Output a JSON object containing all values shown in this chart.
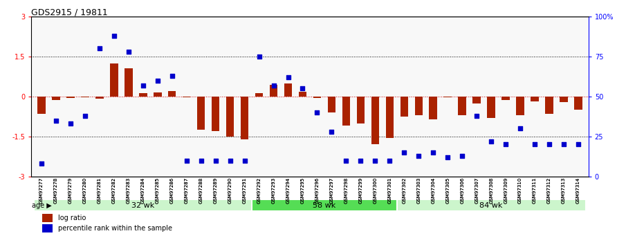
{
  "title": "GDS2915 / 19811",
  "samples": [
    "GSM97277",
    "GSM97278",
    "GSM97279",
    "GSM97280",
    "GSM97281",
    "GSM97282",
    "GSM97283",
    "GSM97284",
    "GSM97285",
    "GSM97286",
    "GSM97287",
    "GSM97288",
    "GSM97289",
    "GSM97290",
    "GSM97291",
    "GSM97292",
    "GSM97293",
    "GSM97294",
    "GSM97295",
    "GSM97296",
    "GSM97297",
    "GSM97298",
    "GSM97299",
    "GSM97300",
    "GSM97301",
    "GSM97302",
    "GSM97303",
    "GSM97304",
    "GSM97305",
    "GSM97306",
    "GSM97307",
    "GSM97308",
    "GSM97309",
    "GSM97310",
    "GSM97311",
    "GSM97312",
    "GSM97313",
    "GSM97314"
  ],
  "log_ratio": [
    -0.65,
    -0.12,
    -0.05,
    -0.04,
    -0.08,
    1.25,
    1.05,
    0.12,
    0.15,
    0.2,
    -0.02,
    -1.25,
    -1.3,
    -1.5,
    -1.6,
    0.12,
    0.45,
    0.5,
    0.18,
    -0.05,
    -0.6,
    -1.1,
    -1.0,
    -1.8,
    -1.55,
    -0.75,
    -0.7,
    -0.85,
    -0.04,
    -0.7,
    -0.25,
    -0.8,
    -0.12,
    -0.7,
    -0.18,
    -0.65,
    -0.22,
    -0.5
  ],
  "percentile": [
    8,
    35,
    33,
    38,
    80,
    88,
    78,
    57,
    60,
    63,
    10,
    10,
    10,
    10,
    10,
    75,
    57,
    62,
    55,
    40,
    28,
    10,
    10,
    10,
    10,
    15,
    13,
    15,
    12,
    13,
    38,
    22,
    20,
    30,
    20,
    20,
    20,
    20
  ],
  "groups": [
    {
      "label": "32 wk",
      "start": 0,
      "end": 15,
      "color": "#aeeaae"
    },
    {
      "label": "58 wk",
      "start": 15,
      "end": 25,
      "color": "#55dd55"
    },
    {
      "label": "84 wk",
      "start": 25,
      "end": 38,
      "color": "#aeeaae"
    }
  ],
  "bar_color": "#AA2200",
  "dot_color": "#0000CC",
  "hline_color": "#CC0000",
  "bg_color": "#F8F8F8"
}
